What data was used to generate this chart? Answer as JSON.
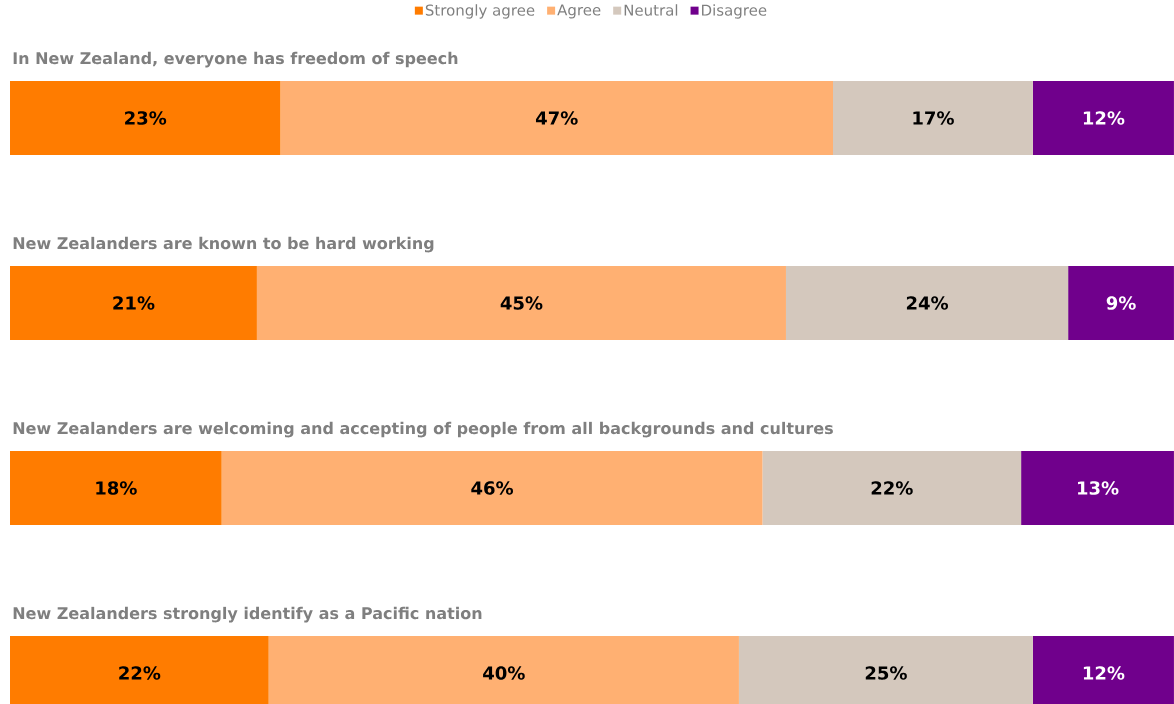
{
  "chart_data": {
    "type": "bar",
    "orientation": "horizontal",
    "stacked": true,
    "legend": "top",
    "categories": [
      "In New Zealand, everyone has freedom of speech",
      "New Zealanders are known to be hard working",
      "New Zealanders are welcoming and accepting of people from all backgrounds and cultures",
      "New Zealanders strongly identify as a Pacific nation"
    ],
    "xlim": [
      0,
      99
    ],
    "series": [
      {
        "name": "Strongly agree",
        "color": "#ff7c00",
        "values": [
          23,
          21,
          18,
          22
        ],
        "value_labels": [
          "23%",
          "21%",
          "18%",
          "22%"
        ]
      },
      {
        "name": "Agree",
        "color": "#ffb072",
        "values": [
          47,
          45,
          46,
          40
        ],
        "value_labels": [
          "47%",
          "45%",
          "46%",
          "40%"
        ]
      },
      {
        "name": "Neutral",
        "color": "#d4c8bd",
        "values": [
          17,
          24,
          22,
          25
        ],
        "value_labels": [
          "17%",
          "24%",
          "22%",
          "25%"
        ]
      },
      {
        "name": "Disagree",
        "color": "#70008c",
        "values": [
          12,
          9,
          13,
          12
        ],
        "value_labels": [
          "12%",
          "9%",
          "13%",
          "12%"
        ]
      }
    ]
  }
}
